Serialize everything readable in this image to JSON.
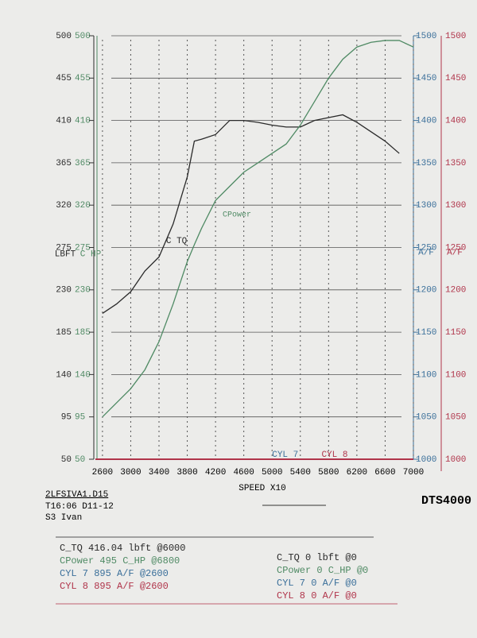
{
  "chart_data": {
    "type": "line",
    "x_label": "SPEED  X10",
    "y_labels": [
      "LBFT",
      "C HP"
    ],
    "y2_labels": [
      "A/F",
      "A/F"
    ],
    "x": [
      2600,
      2800,
      3000,
      3200,
      3400,
      3600,
      3800,
      3900,
      4000,
      4200,
      4400,
      4600,
      4800,
      5000,
      5200,
      5400,
      5600,
      5800,
      6000,
      6200,
      6400,
      6600,
      6800,
      7000
    ],
    "series": [
      {
        "name": "C TQ",
        "color": "#2a2a2a",
        "values": [
          205,
          215,
          228,
          250,
          265,
          300,
          350,
          388,
          390,
          395,
          410,
          410,
          408,
          405,
          403,
          403,
          410,
          413,
          416,
          408,
          398,
          388,
          375,
          null
        ]
      },
      {
        "name": "CPower",
        "color": "#4f8a64",
        "values": [
          95,
          110,
          125,
          145,
          175,
          215,
          260,
          278,
          295,
          325,
          340,
          355,
          365,
          375,
          385,
          405,
          430,
          455,
          475,
          488,
          493,
          495,
          495,
          488
        ]
      }
    ],
    "annotations": [
      "CYL 7",
      "CYL 8"
    ],
    "xlim": [
      2500,
      7000
    ],
    "xticks": [
      2600,
      3000,
      3400,
      3800,
      4200,
      4600,
      5000,
      5400,
      5800,
      6200,
      6600,
      7000
    ],
    "ylim": [
      50,
      500
    ],
    "yticks": [
      50,
      95,
      140,
      185,
      230,
      275,
      320,
      365,
      410,
      455,
      500
    ],
    "y2lim": [
      1000,
      1500
    ],
    "y2ticks": [
      1000,
      1050,
      1100,
      1150,
      1200,
      1250,
      1300,
      1350,
      1400,
      1450,
      1500
    ],
    "y_colors": [
      "#2a2a2a",
      "#4f8a64"
    ],
    "y2_colors": [
      "#3a6f9a",
      "#b0344a"
    ],
    "grid": true
  },
  "run_info": [
    "2LFSIVA1.D15",
    "T16:06 D11-12",
    "S3 Ivan"
  ],
  "brand": "DTS4000",
  "summary_left": [
    {
      "text": "C_TQ 416.04 lbft @6000",
      "color": "#2a2a2a"
    },
    {
      "text": "CPower 495 C_HP @6800",
      "color": "#4f8a64"
    },
    {
      "text": "CYL 7 895 A/F @2600",
      "color": "#3a6f9a"
    },
    {
      "text": "CYL 8 895 A/F @2600",
      "color": "#b0344a"
    }
  ],
  "summary_right": [
    {
      "text": "C_TQ 0 lbft @0",
      "color": "#2a2a2a"
    },
    {
      "text": "CPower 0 C_HP @0",
      "color": "#4f8a64"
    },
    {
      "text": "CYL 7 0 A/F @0",
      "color": "#3a6f9a"
    },
    {
      "text": "CYL 8 0 A/F @0",
      "color": "#b0344a"
    }
  ]
}
